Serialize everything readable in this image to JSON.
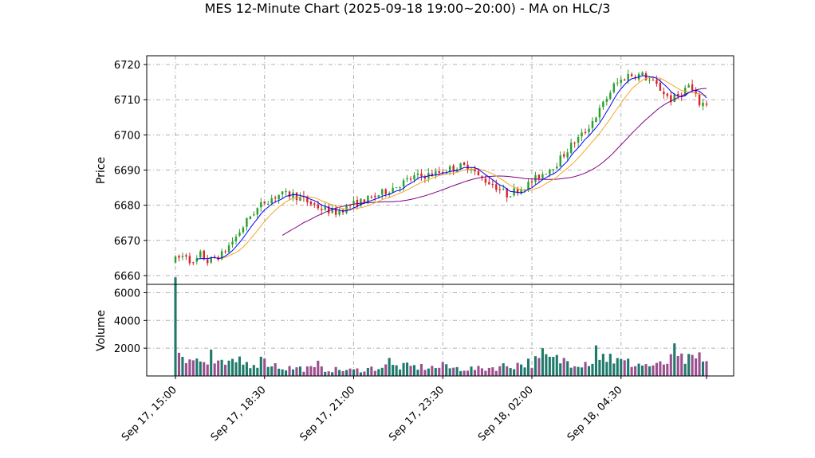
{
  "chart_data": {
    "title": "MES 12-Minute Chart (2025-09-18 19:00~20:00) - MA on HLC/3",
    "type": "candlestick",
    "x_axis": {
      "ticks": [
        "Sep 17, 15:00",
        "Sep 17, 18:30",
        "Sep 17, 21:00",
        "Sep 17, 23:30",
        "Sep 18, 02:00",
        "Sep 18, 04:30"
      ],
      "tick_positions_bar_index": [
        0,
        25,
        50,
        75,
        100,
        125
      ],
      "n_bars": 150
    },
    "price_axis": {
      "label": "Price",
      "ylim": [
        6657.5,
        6722.5
      ],
      "ticks": [
        6660,
        6670,
        6680,
        6690,
        6700,
        6710,
        6720
      ]
    },
    "volume_axis": {
      "label": "Volume",
      "ylim": [
        0,
        6600
      ],
      "ticks": [
        2000,
        4000,
        6000
      ]
    },
    "grid": true,
    "colors": {
      "up": "#2ca02c",
      "down": "#d62728",
      "ma_fast": "#0000ff",
      "ma_mid": "#f5a623",
      "ma_slow": "#800080",
      "vol_up": "#1f7a6b",
      "vol_down": "#9b4f8f",
      "grid": "#b0b0b0"
    },
    "price_anchors": [
      [
        0,
        6664
      ],
      [
        4,
        6666
      ],
      [
        6,
        6663
      ],
      [
        8,
        6666
      ],
      [
        10,
        6664
      ],
      [
        14,
        6666
      ],
      [
        18,
        6671
      ],
      [
        22,
        6677
      ],
      [
        26,
        6681
      ],
      [
        30,
        6683
      ],
      [
        34,
        6683
      ],
      [
        38,
        6681
      ],
      [
        42,
        6679
      ],
      [
        46,
        6678
      ],
      [
        50,
        6680
      ],
      [
        56,
        6682
      ],
      [
        62,
        6685
      ],
      [
        68,
        6688
      ],
      [
        74,
        6689
      ],
      [
        80,
        6691
      ],
      [
        84,
        6691
      ],
      [
        86,
        6688
      ],
      [
        90,
        6686
      ],
      [
        94,
        6683
      ],
      [
        96,
        6684
      ],
      [
        100,
        6686
      ],
      [
        104,
        6689
      ],
      [
        108,
        6692
      ],
      [
        112,
        6697
      ],
      [
        116,
        6701
      ],
      [
        120,
        6707
      ],
      [
        124,
        6714
      ],
      [
        128,
        6717
      ],
      [
        132,
        6717
      ],
      [
        136,
        6714
      ],
      [
        140,
        6710
      ],
      [
        142,
        6711
      ],
      [
        145,
        6714
      ],
      [
        148,
        6709
      ],
      [
        150,
        6709
      ]
    ],
    "volume_profile": [
      [
        0,
        7100
      ],
      [
        1,
        2000
      ],
      [
        2,
        1700
      ],
      [
        3,
        1500
      ],
      [
        5,
        1200
      ],
      [
        10,
        800
      ],
      [
        20,
        900
      ],
      [
        25,
        1100
      ],
      [
        30,
        600
      ],
      [
        50,
        400
      ],
      [
        60,
        700
      ],
      [
        75,
        600
      ],
      [
        85,
        500
      ],
      [
        95,
        800
      ],
      [
        100,
        1000
      ],
      [
        105,
        1200
      ],
      [
        115,
        1000
      ],
      [
        120,
        1400
      ],
      [
        125,
        1000
      ],
      [
        135,
        700
      ],
      [
        140,
        1200
      ],
      [
        145,
        1100
      ],
      [
        150,
        900
      ]
    ],
    "volume_spikes": [
      [
        0,
        7100
      ],
      [
        10,
        1900
      ],
      [
        18,
        1400
      ],
      [
        25,
        1250
      ],
      [
        40,
        1100
      ],
      [
        60,
        1300
      ],
      [
        75,
        1000
      ],
      [
        103,
        2000
      ],
      [
        118,
        2200
      ],
      [
        122,
        1600
      ],
      [
        140,
        2350
      ],
      [
        147,
        1700
      ]
    ],
    "ma_windows": {
      "fast": 5,
      "mid": 10,
      "slow": 30
    },
    "ma_slow_starts_at_bar": 30
  }
}
